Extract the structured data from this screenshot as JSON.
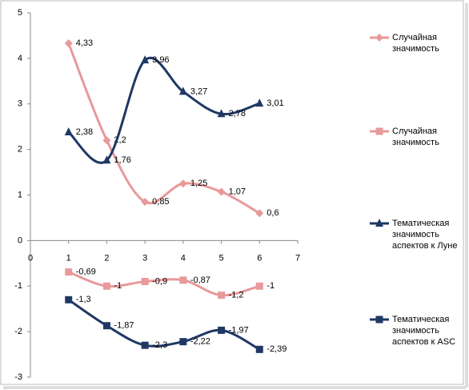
{
  "chart_data": {
    "type": "scatter",
    "smooth": true,
    "xlim": [
      0,
      7
    ],
    "xticks": [
      0,
      1,
      2,
      3,
      4,
      5,
      6,
      7
    ],
    "ylim": [
      -3,
      5
    ],
    "yticks": [
      -3,
      -2,
      -1,
      0,
      1,
      2,
      3,
      4,
      5
    ],
    "grid": false,
    "legend": "right",
    "series": [
      {
        "name": "Случайная значимость",
        "color": "#e8999a",
        "marker": "diamond",
        "x": [
          1,
          2,
          3,
          4,
          5,
          6
        ],
        "values": [
          4.33,
          2.2,
          0.85,
          1.25,
          1.07,
          0.6
        ],
        "value_labels": [
          "4,33",
          "2,2",
          "0,85",
          "1,25",
          "1,07",
          "0,6"
        ]
      },
      {
        "name": "Случайная значимость",
        "color": "#e8999a",
        "marker": "square",
        "x": [
          1,
          2,
          3,
          4,
          5,
          6
        ],
        "values": [
          -0.69,
          -1,
          -0.9,
          -0.87,
          -1.2,
          -1
        ],
        "value_labels": [
          "-0,69",
          "-1",
          "-0,9",
          "-0,87",
          "-1,2",
          "-1"
        ]
      },
      {
        "name": "Тематическая значимость аспектов к Луне",
        "color": "#1f3864",
        "marker": "triangle",
        "x": [
          1,
          2,
          3,
          4,
          5,
          6
        ],
        "values": [
          2.38,
          1.76,
          3.96,
          3.27,
          2.78,
          3.01
        ],
        "value_labels": [
          "2,38",
          "1,76",
          "3,96",
          "3,27",
          "2,78",
          "3,01"
        ]
      },
      {
        "name": "Тематическая значимость аспектов к ASC",
        "color": "#1f3864",
        "marker": "square",
        "x": [
          1,
          2,
          3,
          4,
          5,
          6
        ],
        "values": [
          -1.3,
          -1.87,
          -2.3,
          -2.22,
          -1.97,
          -2.39
        ],
        "value_labels": [
          "-1,3",
          "-1,87",
          "-2,3",
          "-2,22",
          "-1,97",
          "-2,39"
        ]
      }
    ]
  }
}
